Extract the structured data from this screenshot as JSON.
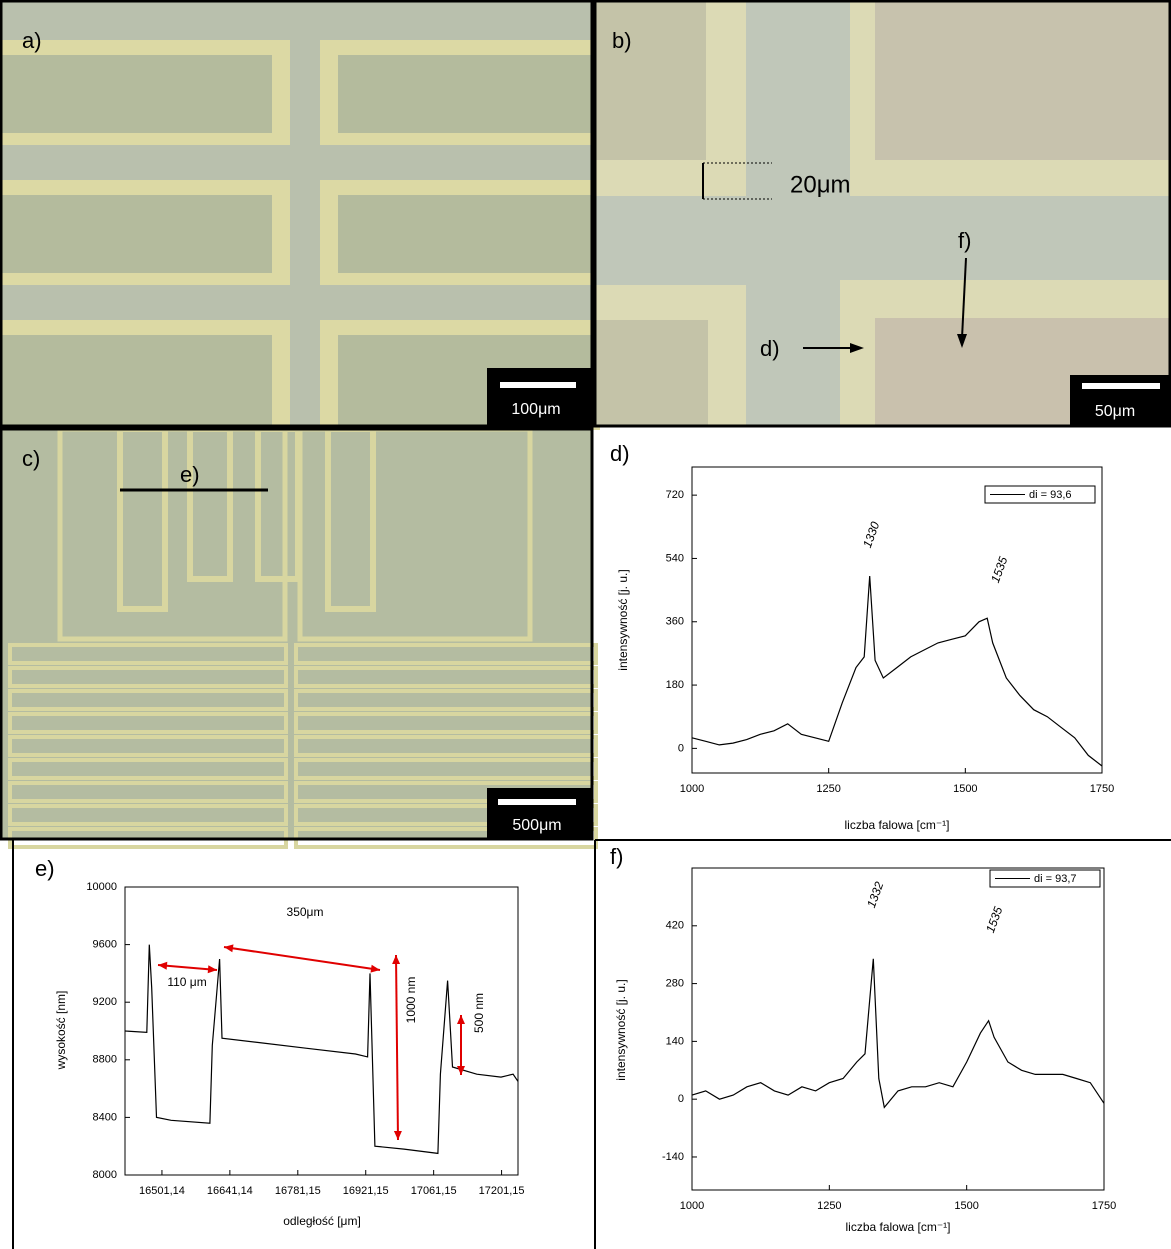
{
  "panels": {
    "a": {
      "label": "a)",
      "scale": "100μm"
    },
    "b": {
      "label": "b)",
      "scale": "50μm",
      "dimension": "20μm",
      "markers": [
        "f)",
        "d)"
      ]
    },
    "c": {
      "label": "c)",
      "scale": "500μm",
      "marker": "e)"
    }
  },
  "chart_data": [
    {
      "type": "line",
      "panel_label": "d)",
      "xlabel": "liczba falowa [cm⁻¹]",
      "ylabel": "intensywność [j. u.]",
      "x": [
        1000,
        1025,
        1050,
        1075,
        1100,
        1125,
        1150,
        1175,
        1200,
        1225,
        1250,
        1275,
        1300,
        1315,
        1325,
        1335,
        1350,
        1375,
        1400,
        1425,
        1450,
        1475,
        1500,
        1525,
        1540,
        1550,
        1575,
        1600,
        1625,
        1650,
        1675,
        1700,
        1725,
        1750
      ],
      "series": [
        {
          "name": "di = 93,6",
          "color": "#000000",
          "values": [
            30,
            20,
            10,
            15,
            25,
            40,
            50,
            70,
            40,
            30,
            20,
            130,
            230,
            260,
            490,
            250,
            200,
            230,
            260,
            280,
            300,
            310,
            320,
            360,
            370,
            300,
            200,
            150,
            110,
            90,
            60,
            30,
            -20,
            -50
          ]
        }
      ],
      "annotations": [
        "1330",
        "1535"
      ],
      "xlim": [
        1000,
        1750
      ],
      "xticks": [
        1000,
        1250,
        1500,
        1750
      ],
      "ylim": [
        -70,
        800
      ],
      "yticks": [
        0,
        180,
        360,
        540,
        720
      ]
    },
    {
      "type": "line",
      "panel_label": "e)",
      "xlabel": "odległość [μm]",
      "ylabel": "wysokość [nm]",
      "x": [
        16425,
        16470,
        16475,
        16480,
        16490,
        16520,
        16600,
        16605,
        16620,
        16625,
        16700,
        16800,
        16900,
        16925,
        16930,
        16940,
        17000,
        17070,
        17075,
        17090,
        17100,
        17150,
        17200,
        17225,
        17235
      ],
      "series": [
        {
          "color": "#000000",
          "values": [
            9000,
            8990,
            9600,
            9300,
            8400,
            8380,
            8360,
            8900,
            9500,
            8950,
            8920,
            8880,
            8840,
            8820,
            9400,
            8200,
            8180,
            8150,
            8700,
            9350,
            8750,
            8700,
            8680,
            8700,
            8650
          ]
        }
      ],
      "annotations": [
        "350μm",
        "110 μm",
        "1000 nm",
        "500 nm"
      ],
      "xlim": [
        16425,
        17235
      ],
      "xticks": [
        {
          "value": 16501.14,
          "label": "16501,14"
        },
        {
          "value": 16641.14,
          "label": "16641,14"
        },
        {
          "value": 16781.15,
          "label": "16781,15"
        },
        {
          "value": 16921.15,
          "label": "16921,15"
        },
        {
          "value": 17061.15,
          "label": "17061,15"
        },
        {
          "value": 17201.15,
          "label": "17201,15"
        }
      ],
      "ylim": [
        8000,
        10000
      ],
      "yticks": [
        8000,
        8400,
        8800,
        9200,
        9600,
        10000
      ]
    },
    {
      "type": "line",
      "panel_label": "f)",
      "xlabel": "liczba falowa [cm⁻¹]",
      "ylabel": "intensywność [j. u.]",
      "x": [
        1000,
        1025,
        1050,
        1075,
        1100,
        1125,
        1150,
        1175,
        1200,
        1225,
        1250,
        1275,
        1300,
        1315,
        1330,
        1340,
        1350,
        1375,
        1400,
        1425,
        1450,
        1475,
        1500,
        1525,
        1540,
        1550,
        1575,
        1600,
        1625,
        1650,
        1675,
        1700,
        1725,
        1750
      ],
      "series": [
        {
          "name": "di = 93,7",
          "color": "#000000",
          "values": [
            10,
            20,
            0,
            10,
            30,
            40,
            20,
            10,
            30,
            20,
            40,
            50,
            90,
            110,
            340,
            50,
            -20,
            20,
            30,
            30,
            40,
            30,
            90,
            160,
            190,
            150,
            90,
            70,
            60,
            60,
            60,
            50,
            40,
            -10
          ]
        }
      ],
      "annotations": [
        "1332",
        "1535"
      ],
      "xlim": [
        1000,
        1750
      ],
      "xticks": [
        1000,
        1250,
        1500,
        1750
      ],
      "ylim": [
        -220,
        560
      ],
      "yticks": [
        -140,
        0,
        140,
        280,
        420
      ]
    }
  ]
}
